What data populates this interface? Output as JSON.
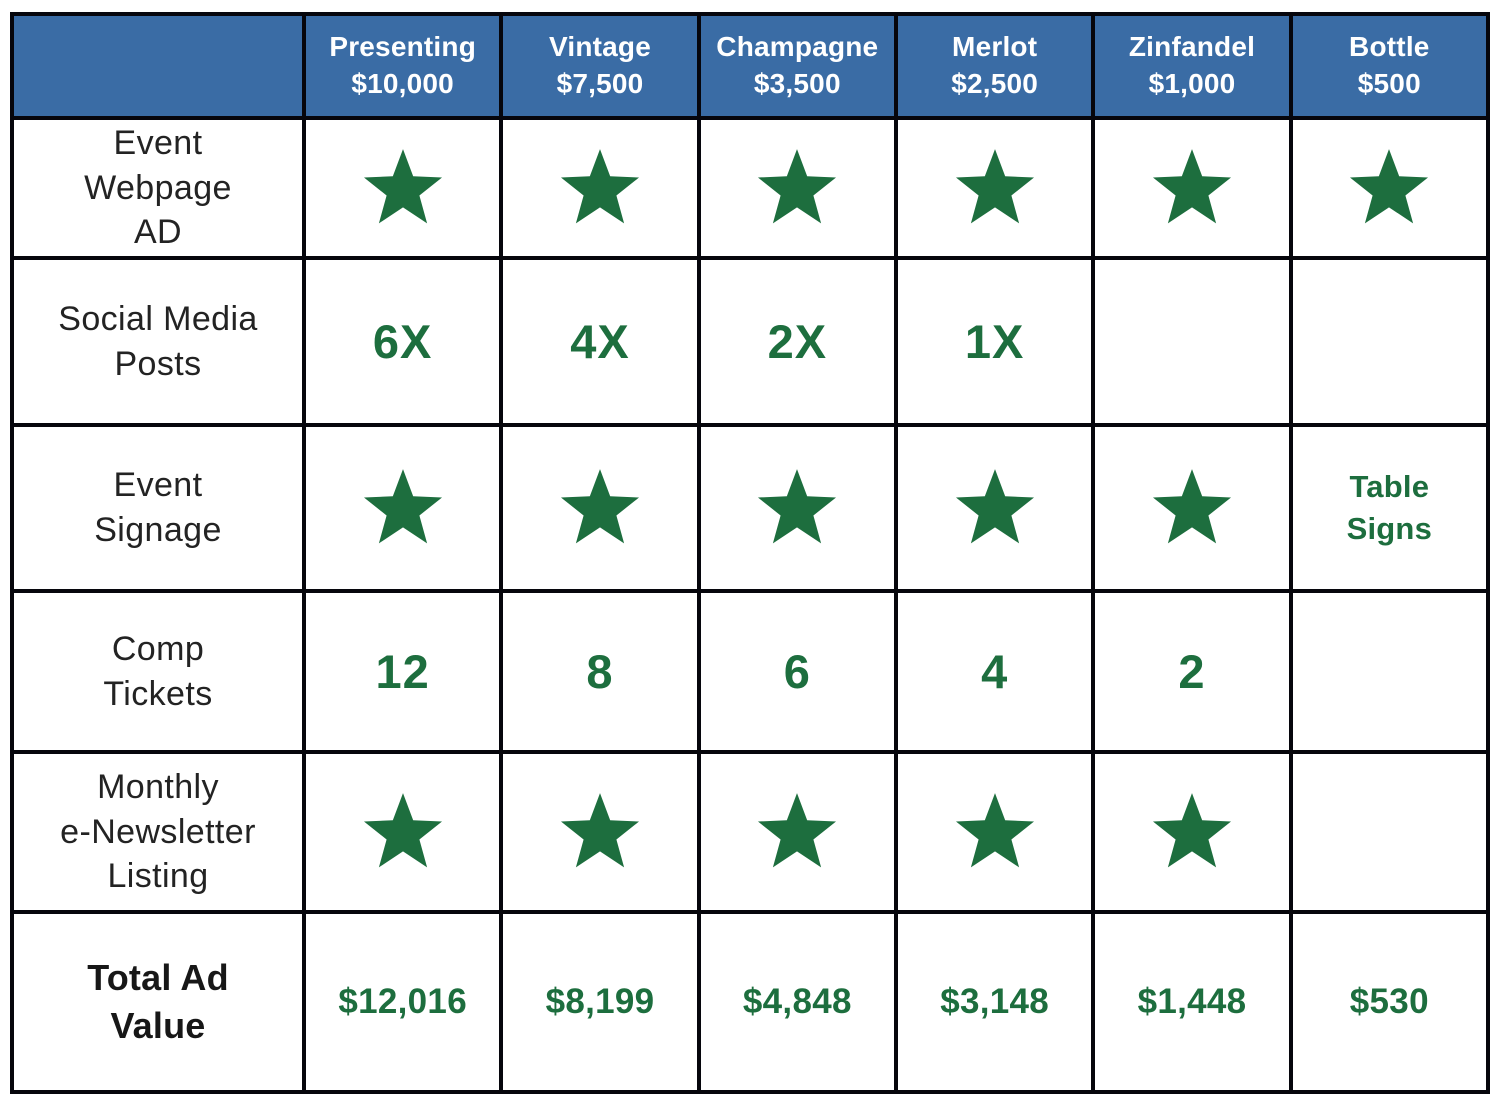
{
  "colors": {
    "header_bg": "#3a6ca5",
    "header_text": "#ffffff",
    "grid_line": "#06060c",
    "cell_bg": "#ffffff",
    "accent_green": "#1d6e3e",
    "label_text": "#232323"
  },
  "icons": {
    "star": "★"
  },
  "table": {
    "columns": [
      {
        "name": "Presenting",
        "price": "$10,000"
      },
      {
        "name": "Vintage",
        "price": "$7,500"
      },
      {
        "name": "Champagne",
        "price": "$3,500"
      },
      {
        "name": "Merlot",
        "price": "$2,500"
      },
      {
        "name": "Zinfandel",
        "price": "$1,000"
      },
      {
        "name": "Bottle",
        "price": "$500"
      }
    ],
    "rows": [
      {
        "label": "Event\nWebpage\nAD",
        "bold": false,
        "cells": [
          {
            "type": "star"
          },
          {
            "type": "star"
          },
          {
            "type": "star"
          },
          {
            "type": "star"
          },
          {
            "type": "star"
          },
          {
            "type": "star"
          }
        ]
      },
      {
        "label": "Social Media\nPosts",
        "bold": false,
        "cells": [
          {
            "type": "text",
            "style": "big",
            "value": "6X"
          },
          {
            "type": "text",
            "style": "big",
            "value": "4X"
          },
          {
            "type": "text",
            "style": "big",
            "value": "2X"
          },
          {
            "type": "text",
            "style": "big",
            "value": "1X"
          },
          {
            "type": "empty"
          },
          {
            "type": "empty"
          }
        ]
      },
      {
        "label": "Event\nSignage",
        "bold": false,
        "cells": [
          {
            "type": "star"
          },
          {
            "type": "star"
          },
          {
            "type": "star"
          },
          {
            "type": "star"
          },
          {
            "type": "star"
          },
          {
            "type": "text",
            "style": "small",
            "value": "Table\nSigns"
          }
        ]
      },
      {
        "label": "Comp\nTickets",
        "bold": false,
        "cells": [
          {
            "type": "text",
            "style": "big",
            "value": "12"
          },
          {
            "type": "text",
            "style": "big",
            "value": "8"
          },
          {
            "type": "text",
            "style": "big",
            "value": "6"
          },
          {
            "type": "text",
            "style": "big",
            "value": "4"
          },
          {
            "type": "text",
            "style": "big",
            "value": "2"
          },
          {
            "type": "empty"
          }
        ]
      },
      {
        "label": "Monthly\ne-Newsletter\nListing",
        "bold": false,
        "cells": [
          {
            "type": "star"
          },
          {
            "type": "star"
          },
          {
            "type": "star"
          },
          {
            "type": "star"
          },
          {
            "type": "star"
          },
          {
            "type": "empty"
          }
        ]
      },
      {
        "label": "Total Ad\nValue",
        "bold": true,
        "cells": [
          {
            "type": "text",
            "style": "money",
            "value": "$12,016"
          },
          {
            "type": "text",
            "style": "money",
            "value": "$8,199"
          },
          {
            "type": "text",
            "style": "money",
            "value": "$4,848"
          },
          {
            "type": "text",
            "style": "money",
            "value": "$3,148"
          },
          {
            "type": "text",
            "style": "money",
            "value": "$1,448"
          },
          {
            "type": "text",
            "style": "money",
            "value": "$530"
          }
        ]
      }
    ]
  },
  "chart_data": {
    "type": "table",
    "columns": [
      "",
      "Presenting $10,000",
      "Vintage $7,500",
      "Champagne $3,500",
      "Merlot $2,500",
      "Zinfandel $1,000",
      "Bottle $500"
    ],
    "rows": [
      [
        "Event Webpage AD",
        "★",
        "★",
        "★",
        "★",
        "★",
        "★"
      ],
      [
        "Social Media Posts",
        "6X",
        "4X",
        "2X",
        "1X",
        "",
        ""
      ],
      [
        "Event Signage",
        "★",
        "★",
        "★",
        "★",
        "★",
        "Table Signs"
      ],
      [
        "Comp Tickets",
        "12",
        "8",
        "6",
        "4",
        "2",
        ""
      ],
      [
        "Monthly e-Newsletter Listing",
        "★",
        "★",
        "★",
        "★",
        "★",
        ""
      ],
      [
        "Total Ad Value",
        "$12,016",
        "$8,199",
        "$4,848",
        "$3,148",
        "$1,448",
        "$530"
      ]
    ]
  }
}
